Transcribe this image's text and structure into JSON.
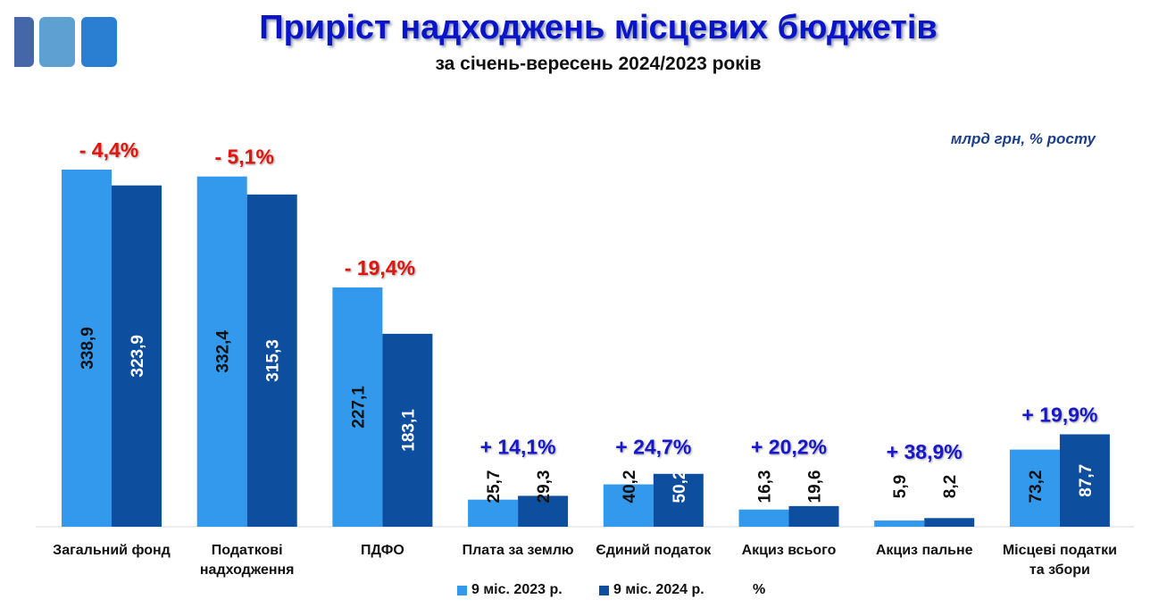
{
  "header": {
    "title": "Приріст надходжень місцевих бюджетів",
    "subtitle": "за січень-вересень 2024/2023 років",
    "units": "млрд грн, % росту"
  },
  "colors": {
    "series_2023": "#3399ec",
    "series_2024": "#0d4e9e",
    "negative": "#e2150d",
    "positive": "#1717cc",
    "logo": [
      "#4566a8",
      "#5fa0d2",
      "#2a7fd2"
    ]
  },
  "chart_data": {
    "type": "bar",
    "title": "Приріст надходжень місцевих бюджетів",
    "categories": [
      [
        "Загальний фонд"
      ],
      [
        "Податкові",
        "надходження"
      ],
      [
        "ПДФО"
      ],
      [
        "Плата за землю"
      ],
      [
        "Єдиний податок"
      ],
      [
        "Акциз всього"
      ],
      [
        "Акциз пальне"
      ],
      [
        "Місцеві податки",
        "та збори"
      ]
    ],
    "series": [
      {
        "name": "9 міс. 2023 р.",
        "values": [
          338.9,
          332.4,
          227.1,
          25.7,
          40.2,
          16.3,
          5.9,
          73.2
        ],
        "labels": [
          "338,9",
          "332,4",
          "227,1",
          "25,7",
          "40,2",
          "16,3",
          "5,9",
          "73,2"
        ]
      },
      {
        "name": "9 міс. 2024 р.",
        "values": [
          323.9,
          315.3,
          183.1,
          29.3,
          50.2,
          19.6,
          8.2,
          87.7
        ],
        "labels": [
          "323,9",
          "315,3",
          "183,1",
          "29,3",
          "50,2",
          "19,6",
          "8,2",
          "87,7"
        ]
      }
    ],
    "growth": [
      -4.4,
      -5.1,
      -19.4,
      14.1,
      24.7,
      20.2,
      38.9,
      19.9
    ],
    "growth_labels": [
      "- 4,4%",
      "- 5,1%",
      "- 19,4%",
      "+ 14,1%",
      "+ 24,7%",
      "+ 20,2%",
      "+ 38,9%",
      "+ 19,9%"
    ],
    "legend": [
      "9 міс. 2023 р.",
      "9 міс. 2024 р.",
      "%"
    ],
    "ylim": [
      0,
      340
    ],
    "grid": false,
    "legend_position": "bottom"
  }
}
